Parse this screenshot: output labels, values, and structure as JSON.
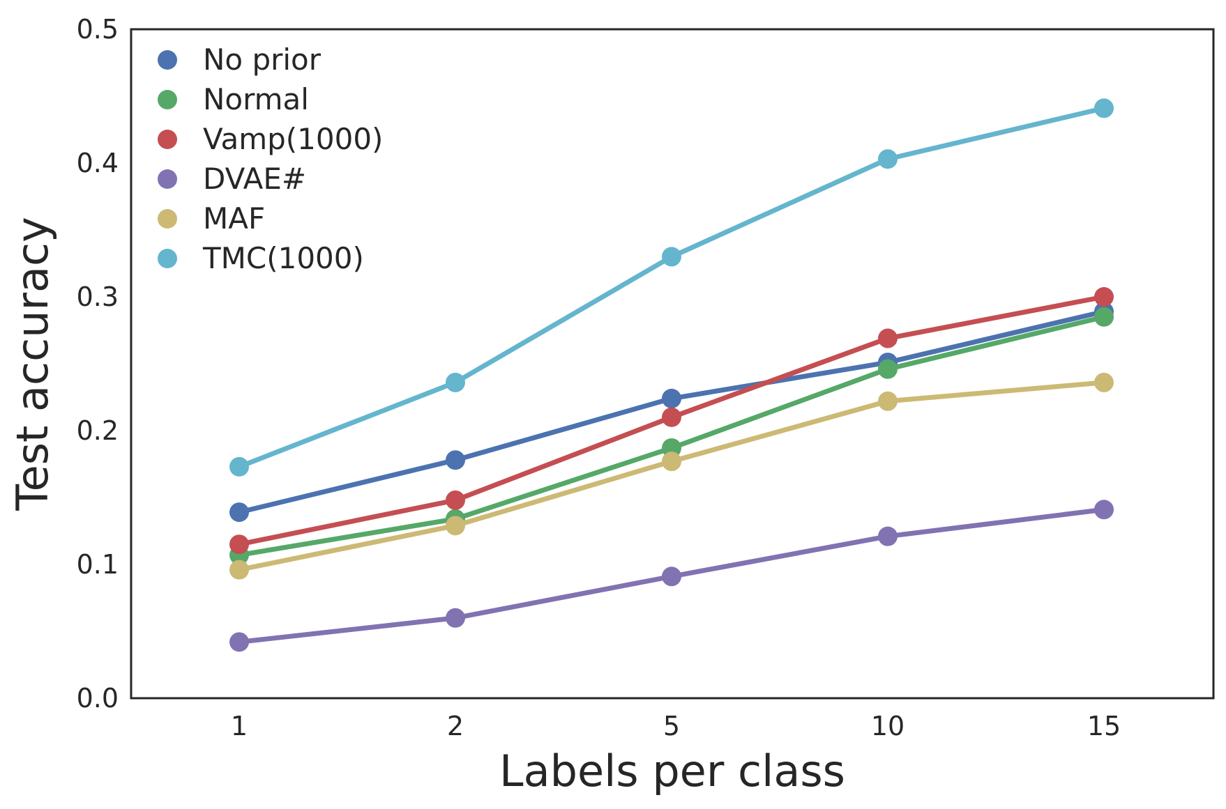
{
  "chart_data": {
    "type": "line",
    "title": "",
    "xlabel": "Labels per class",
    "ylabel": "Test accuracy",
    "categories": [
      "1",
      "2",
      "5",
      "10",
      "15"
    ],
    "ylim": [
      0.0,
      0.5
    ],
    "yticks": [
      "0.0",
      "0.1",
      "0.2",
      "0.3",
      "0.4",
      "0.5"
    ],
    "grid": false,
    "legend_position": "upper-left",
    "series": [
      {
        "name": "No prior",
        "color": "#4c72b0",
        "values": [
          0.139,
          0.178,
          0.224,
          0.251,
          0.289
        ]
      },
      {
        "name": "Normal",
        "color": "#55a868",
        "values": [
          0.107,
          0.134,
          0.187,
          0.246,
          0.285
        ]
      },
      {
        "name": "Vamp(1000)",
        "color": "#c44e52",
        "values": [
          0.115,
          0.148,
          0.21,
          0.269,
          0.3
        ]
      },
      {
        "name": "DVAE#",
        "color": "#8172b2",
        "values": [
          0.042,
          0.06,
          0.091,
          0.121,
          0.141
        ]
      },
      {
        "name": "MAF",
        "color": "#ccb974",
        "values": [
          0.096,
          0.129,
          0.177,
          0.222,
          0.236
        ]
      },
      {
        "name": "TMC(1000)",
        "color": "#64b5cd",
        "values": [
          0.173,
          0.236,
          0.33,
          0.403,
          0.441
        ]
      }
    ]
  }
}
